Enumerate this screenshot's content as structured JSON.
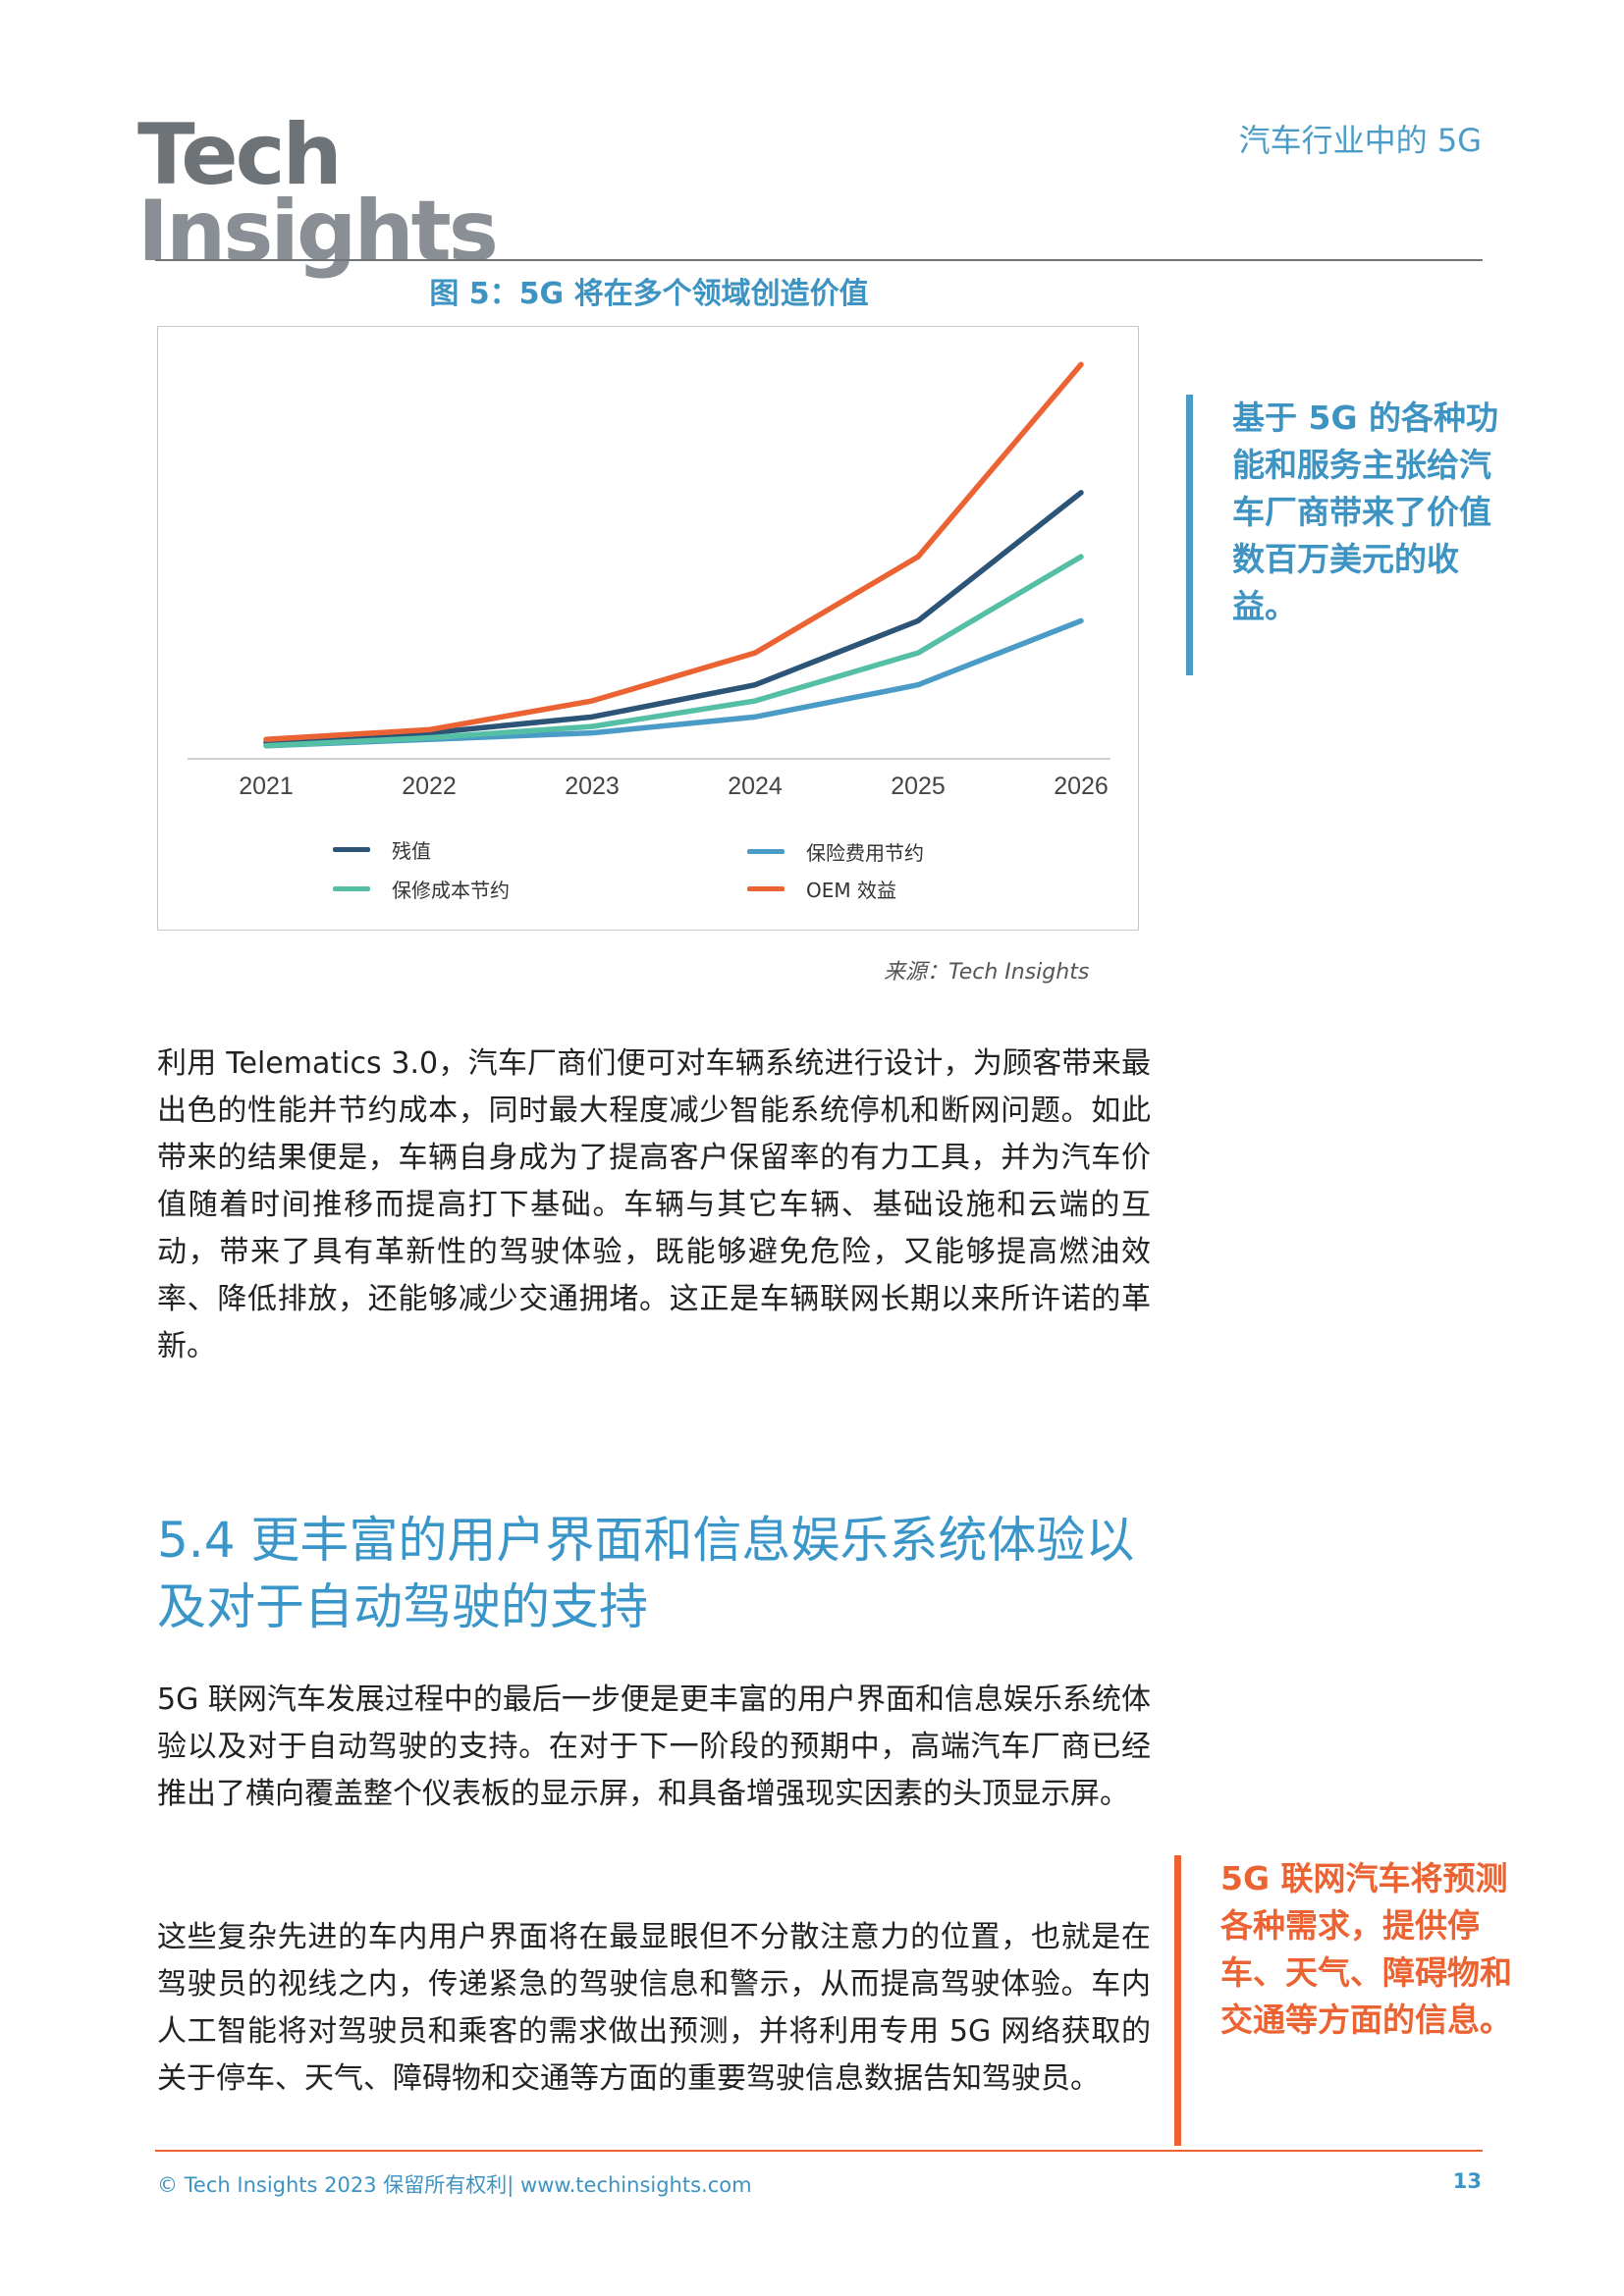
{
  "header": {
    "logo_line1": "Tech",
    "logo_line2": "Insights",
    "title": "汽车行业中的 5G"
  },
  "figure": {
    "caption": "图 5：5G 将在多个领域创造价值",
    "source": "来源：Tech Insights"
  },
  "chart_data": {
    "type": "line",
    "x": [
      "2021",
      "2022",
      "2023",
      "2024",
      "2025",
      "2026"
    ],
    "ylim": [
      0,
      100
    ],
    "grid": false,
    "legend_position": "bottom",
    "series": [
      {
        "name": "残值",
        "color": "#2b5476",
        "values": [
          2,
          5,
          10,
          20,
          40,
          80
        ]
      },
      {
        "name": "保险费用节约",
        "color": "#4a9cc6",
        "values": [
          1,
          3,
          5,
          10,
          20,
          40
        ]
      },
      {
        "name": "保修成本节约",
        "color": "#55bfa6",
        "values": [
          1,
          3.5,
          7,
          15,
          30,
          60
        ]
      },
      {
        "name": "OEM 效益",
        "color": "#ec6333",
        "values": [
          3,
          6,
          15,
          30,
          60,
          120
        ]
      }
    ]
  },
  "callouts": {
    "blue": "基于 5G 的各种功能和服务主张给汽车厂商带来了价值数百万美元的收益。",
    "orange": "5G 联网汽车将预测各种需求，提供停车、天气、障碍物和交通等方面的信息。"
  },
  "body": {
    "para1": "利用 Telematics 3.0，汽车厂商们便可对车辆系统进行设计，为顾客带来最出色的性能并节约成本，同时最大程度减少智能系统停机和断网问题。如此带来的结果便是，车辆自身成为了提高客户保留率的有力工具，并为汽车价值随着时间推移而提高打下基础。车辆与其它车辆、基础设施和云端的互动，带来了具有革新性的驾驶体验，既能够避免危险，又能够提高燃油效率、降低排放，还能够减少交通拥堵。这正是车辆联网长期以来所许诺的革新。",
    "section_heading": "5.4 更丰富的用户界面和信息娱乐系统体验以及对于自动驾驶的支持",
    "para2": "5G 联网汽车发展过程中的最后一步便是更丰富的用户界面和信息娱乐系统体验以及对于自动驾驶的支持。在对于下一阶段的预期中，高端汽车厂商已经推出了横向覆盖整个仪表板的显示屏，和具备增强现实因素的头顶显示屏。",
    "para3": "这些复杂先进的车内用户界面将在最显眼但不分散注意力的位置，也就是在驾驶员的视线之内，传递紧急的驾驶信息和警示，从而提高驾驶体验。车内人工智能将对驾驶员和乘客的需求做出预测，并将利用专用 5G 网络获取的关于停车、天气、障碍物和交通等方面的重要驾驶信息数据告知驾驶员。"
  },
  "footer": {
    "copyright": "© Tech Insights 2023 保留所有权利| www.techinsights.com",
    "page_number": "13"
  }
}
